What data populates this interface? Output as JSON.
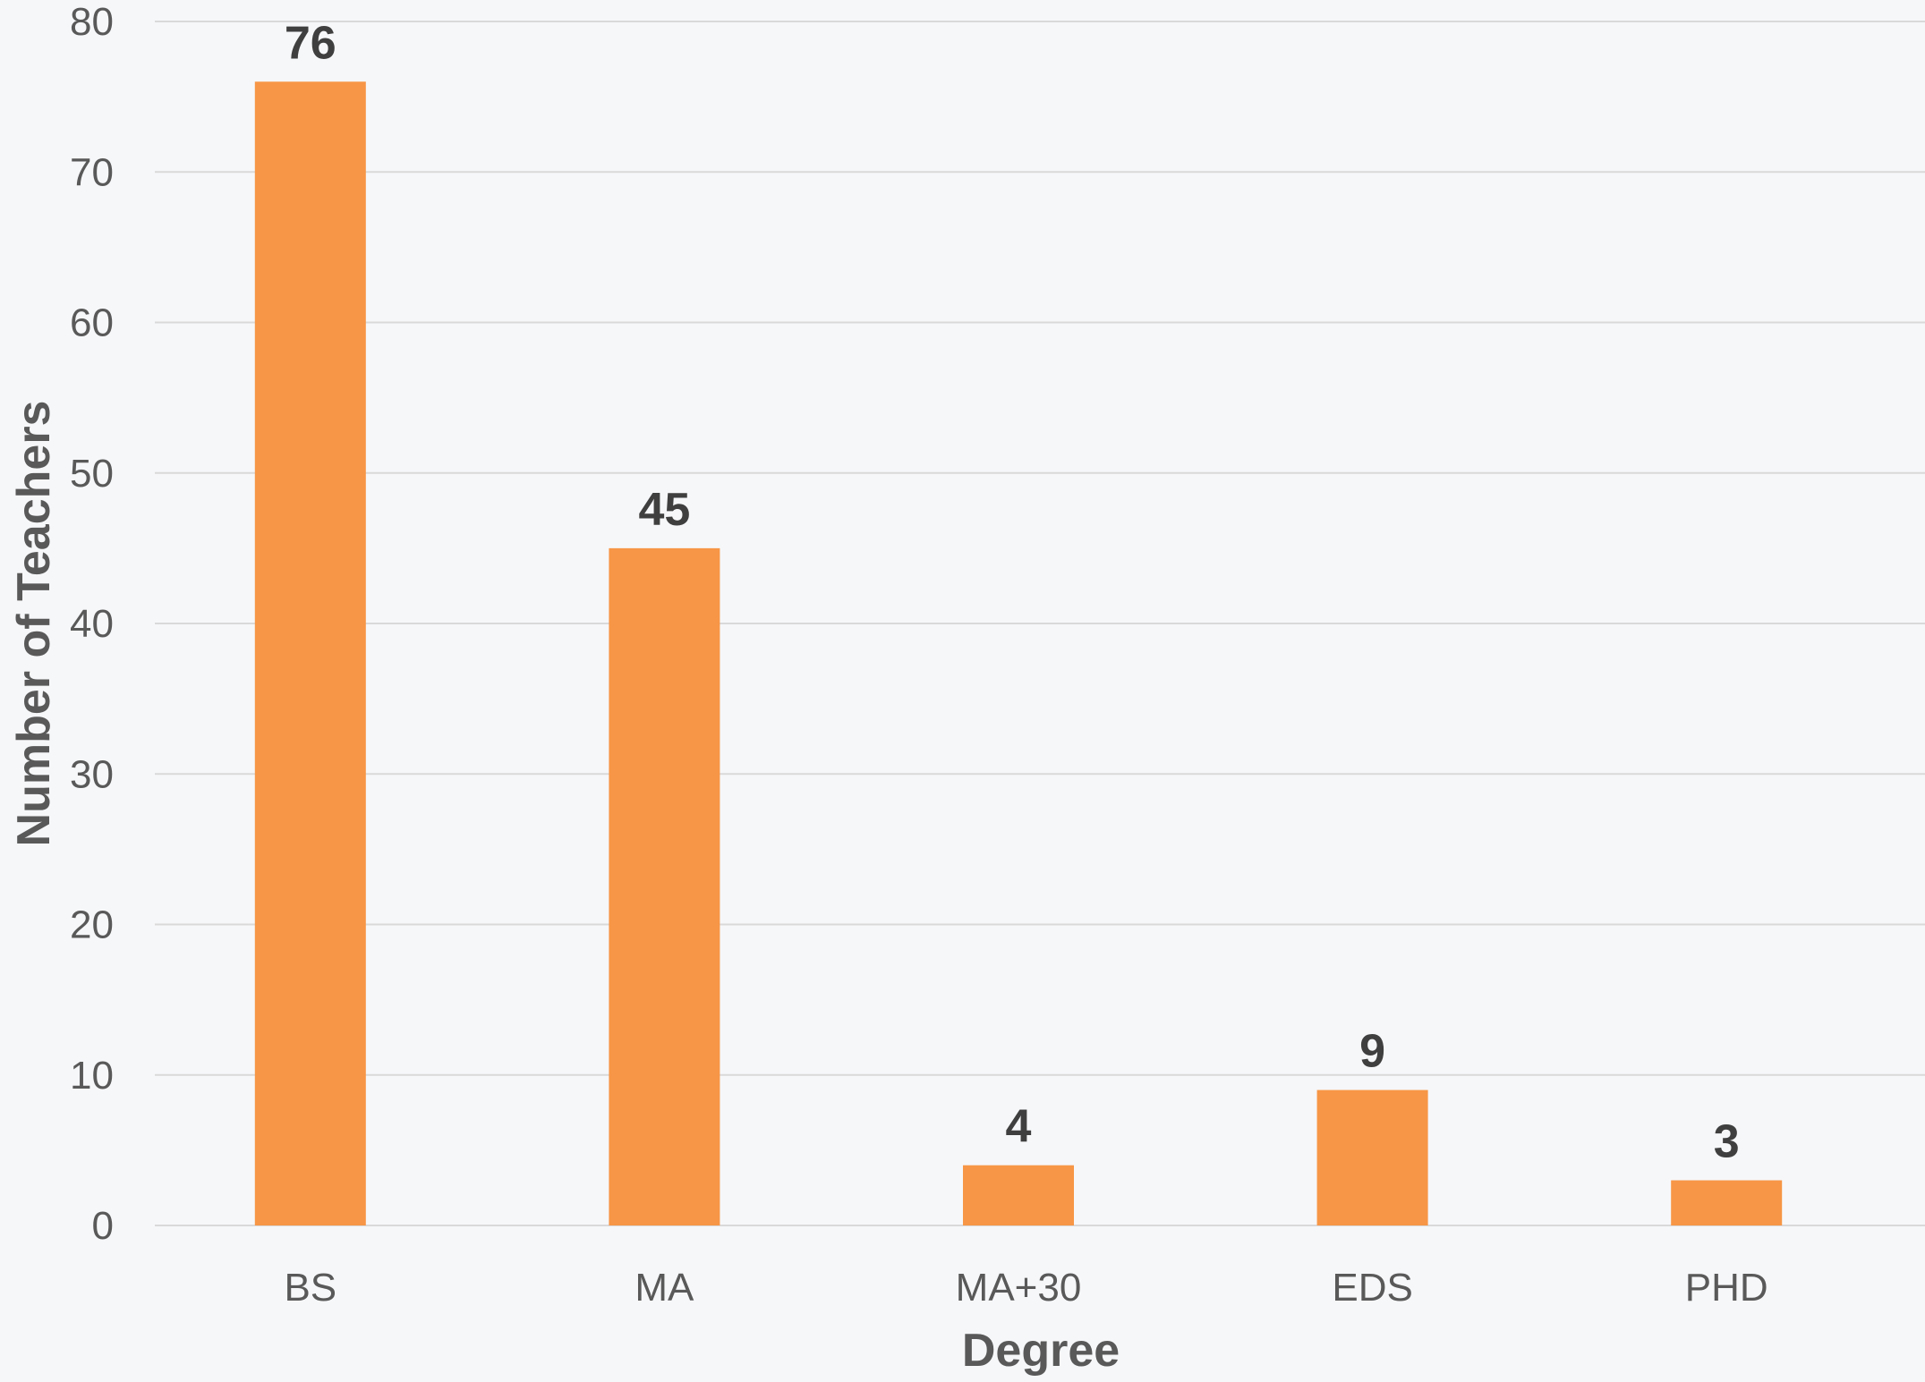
{
  "chart_data": {
    "type": "bar",
    "title": "",
    "xlabel": "Degree",
    "ylabel": "Number of Teachers",
    "categories": [
      "BS",
      "MA",
      "MA+30",
      "EDS",
      "PHD"
    ],
    "values": [
      76,
      45,
      4,
      9,
      3
    ],
    "ylim": [
      0,
      80
    ],
    "yticks": [
      0,
      10,
      20,
      30,
      40,
      50,
      60,
      70,
      80
    ],
    "grid": true,
    "legend": "none",
    "data_labels": true,
    "colors": {
      "bar": "#f79646",
      "grid": "#d9d9d9",
      "background": "#f6f7f9",
      "tick_text": "#595959",
      "data_label_text": "#3f3f3f"
    }
  }
}
